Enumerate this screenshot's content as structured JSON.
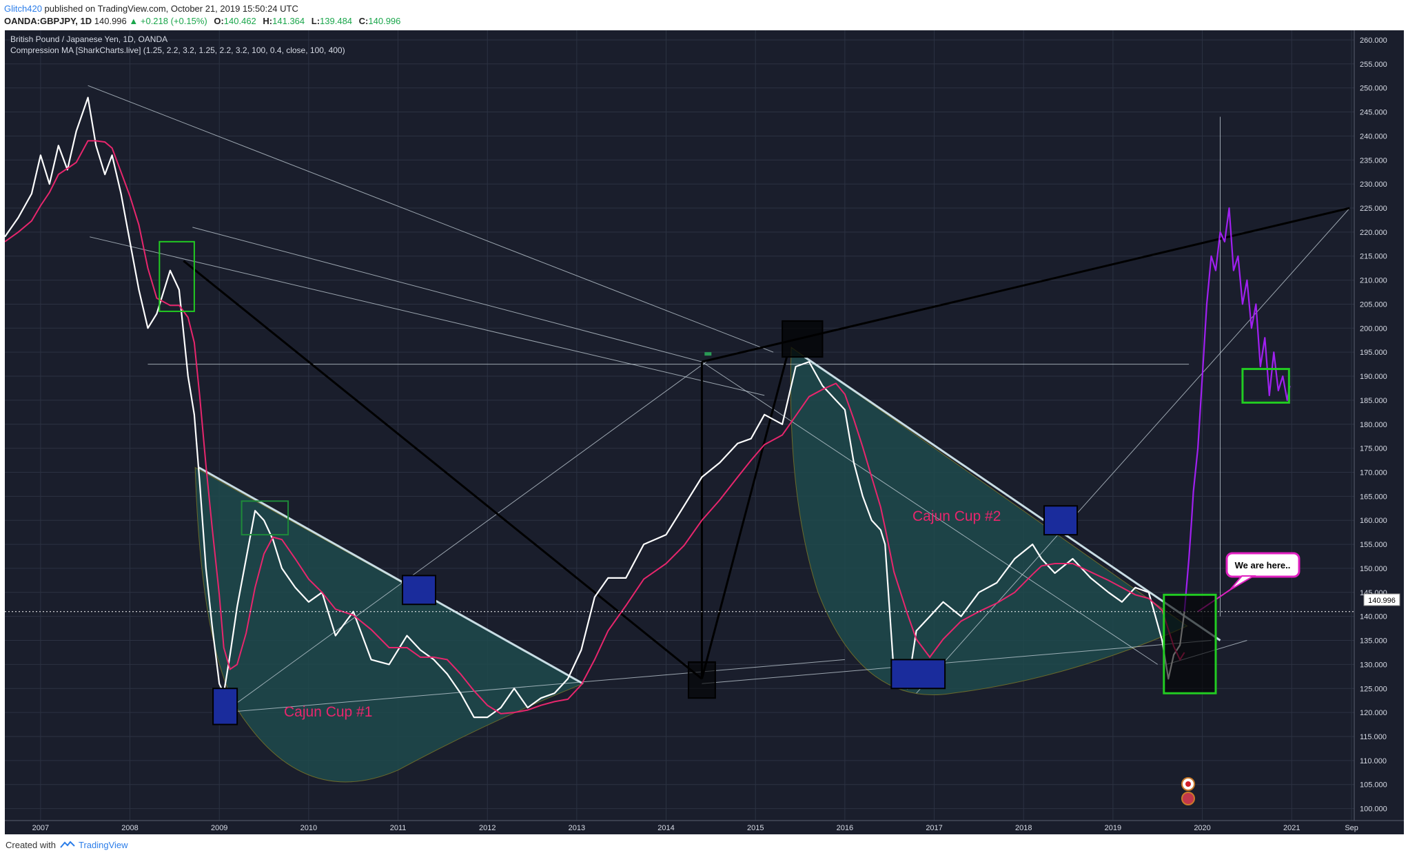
{
  "header": {
    "author": "Glitch420",
    "published_text": "published on TradingView.com, October 21, 2019 15:50:24 UTC",
    "symbol": "OANDA:GBPJPY, 1D",
    "last": "140.996",
    "change": "▲ +0.218 (+0.15%)",
    "o_label": "O:",
    "o_value": "140.462",
    "h_label": "H:",
    "h_value": "141.364",
    "l_label": "L:",
    "l_value": "139.484",
    "c_label": "C:",
    "c_value": "140.996"
  },
  "legend": {
    "title": "British Pound / Japanese Yen, 1D, OANDA",
    "indicator": "Compression MA [SharkCharts.live] (1.25, 2.2, 3.2, 1.25, 2.2, 3.2, 100, 0.4, close, 100, 400)"
  },
  "annotations": {
    "cup1": "Cajun Cup #1",
    "cup2": "Cajun Cup #2",
    "callout": "We are here..",
    "price_marker": "140.996"
  },
  "footer": {
    "created_with": "Created with",
    "brand": "TradingView"
  },
  "colors": {
    "background": "#1a1e2c",
    "grid": "#2c3242",
    "price": "#ffffff",
    "ma_pink": "#e8266d",
    "projection": "#a020f0",
    "cup_fill": "#1f4a4c",
    "box_green": "#22cc22",
    "box_blue": "#1a2c9c",
    "trendline": "#c8d4dc"
  },
  "chart_data": {
    "type": "line",
    "title": "British Pound / Japanese Yen, 1D, OANDA",
    "x_tick_labels": [
      "2007",
      "2008",
      "2009",
      "2010",
      "2011",
      "2012",
      "2013",
      "2014",
      "2015",
      "2016",
      "2017",
      "2018",
      "2019",
      "2020",
      "2021",
      "Sep"
    ],
    "y_tick_labels": [
      "260.000",
      "255.000",
      "250.000",
      "245.000",
      "240.000",
      "235.000",
      "230.000",
      "225.000",
      "220.000",
      "215.000",
      "210.000",
      "205.000",
      "200.000",
      "195.000",
      "190.000",
      "185.000",
      "180.000",
      "175.000",
      "170.000",
      "165.000",
      "160.000",
      "155.000",
      "150.000",
      "145.000",
      "140.000",
      "135.000",
      "130.000",
      "125.000",
      "120.000",
      "115.000",
      "110.000",
      "105.000",
      "100.000"
    ],
    "ylim": [
      97.5,
      262
    ],
    "xlim": [
      2006.6,
      2021.7
    ],
    "grid": true,
    "last_price": 140.996,
    "series": [
      {
        "name": "GBPJPY",
        "x": [
          2006.6,
          2006.75,
          2006.9,
          2007.0,
          2007.1,
          2007.2,
          2007.3,
          2007.4,
          2007.53,
          2007.62,
          2007.72,
          2007.8,
          2007.9,
          2008.0,
          2008.1,
          2008.2,
          2008.3,
          2008.45,
          2008.55,
          2008.65,
          2008.72,
          2008.78,
          2008.85,
          2008.92,
          2009.0,
          2009.05,
          2009.12,
          2009.2,
          2009.3,
          2009.4,
          2009.5,
          2009.6,
          2009.7,
          2009.85,
          2010.0,
          2010.15,
          2010.3,
          2010.5,
          2010.7,
          2010.9,
          2011.1,
          2011.25,
          2011.4,
          2011.55,
          2011.7,
          2011.85,
          2012.0,
          2012.15,
          2012.3,
          2012.45,
          2012.6,
          2012.75,
          2012.9,
          2013.05,
          2013.2,
          2013.35,
          2013.55,
          2013.75,
          2014.0,
          2014.2,
          2014.4,
          2014.6,
          2014.8,
          2014.95,
          2015.1,
          2015.3,
          2015.45,
          2015.6,
          2015.75,
          2015.9,
          2016.0,
          2016.1,
          2016.2,
          2016.3,
          2016.4,
          2016.45,
          2016.55,
          2016.7,
          2016.8,
          2016.95,
          2017.1,
          2017.3,
          2017.5,
          2017.7,
          2017.9,
          2018.1,
          2018.2,
          2018.35,
          2018.55,
          2018.75,
          2018.95,
          2019.1,
          2019.25,
          2019.4,
          2019.55,
          2019.62,
          2019.68,
          2019.75,
          2019.8
        ],
        "values": [
          219,
          223,
          228,
          236,
          230,
          238,
          233,
          241,
          248,
          238,
          232,
          236,
          228,
          218,
          208,
          200,
          203,
          212,
          208,
          190,
          182,
          168,
          150,
          138,
          126,
          124,
          132,
          142,
          152,
          162,
          160,
          156,
          150,
          146,
          143,
          145,
          136,
          141,
          131,
          130,
          136,
          133,
          131,
          128,
          124,
          119,
          119,
          121,
          125,
          121,
          123,
          124,
          127,
          133,
          144,
          148,
          148,
          155,
          157,
          163,
          169,
          172,
          176,
          177,
          182,
          180,
          192,
          193,
          188,
          185,
          183,
          172,
          165,
          160,
          158,
          155,
          128,
          125,
          137,
          140,
          143,
          140,
          145,
          147,
          152,
          155,
          152,
          149,
          152,
          148,
          145,
          143,
          146,
          145,
          135,
          127,
          132,
          134,
          141
        ]
      },
      {
        "name": "projection",
        "x": [
          2019.8,
          2019.85,
          2019.88,
          2019.9,
          2019.95,
          2020.0,
          2020.05,
          2020.1,
          2020.15,
          2020.2,
          2020.25,
          2020.3,
          2020.35,
          2020.4,
          2020.45,
          2020.5,
          2020.55,
          2020.6,
          2020.65,
          2020.7,
          2020.75,
          2020.8,
          2020.85,
          2020.9,
          2020.95,
          2020.98
        ],
        "values": [
          141,
          152,
          160,
          166,
          175,
          190,
          205,
          215,
          212,
          220,
          218,
          225,
          212,
          215,
          205,
          210,
          200,
          205,
          192,
          198,
          186,
          195,
          187,
          190,
          185,
          188
        ]
      }
    ]
  }
}
